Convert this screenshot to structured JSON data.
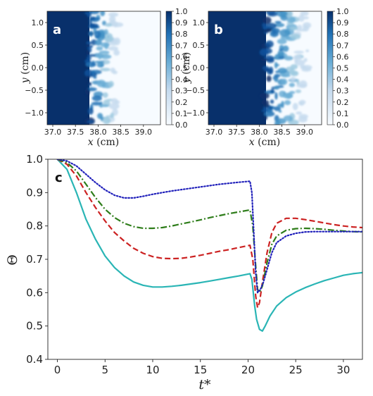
{
  "panels": [
    {
      "letter": "a",
      "xlabel_var": "x",
      "xlabel_unit": " (cm)",
      "ylabel_var": "y",
      "ylabel_unit": " (cm)",
      "xticks": [
        "37.0",
        "37.5",
        "38.0",
        "38.5",
        "39.0"
      ],
      "yticks": [
        "1.0",
        "0.5",
        "0.0",
        "−0.5",
        "−1.0"
      ],
      "colorbar_ticks": [
        "1.0",
        "0.9",
        "0.8",
        "0.7",
        "0.6",
        "0.5",
        "0.4",
        "0.3",
        "0.2",
        "0.1",
        "0.0"
      ],
      "field_colors": {
        "high": "#08306b",
        "low": "#f7fbff"
      }
    },
    {
      "letter": "b",
      "xlabel_var": "x",
      "xlabel_unit": " (cm)",
      "ylabel_var": "y",
      "ylabel_unit": " (cm)",
      "xticks": [
        "37.0",
        "37.5",
        "38.0",
        "38.5",
        "39.0"
      ],
      "yticks": [
        "1.0",
        "0.5",
        "0.0",
        "−0.5",
        "−1.0"
      ],
      "colorbar_ticks": [
        "1.0",
        "0.9",
        "0.8",
        "0.7",
        "0.6",
        "0.5",
        "0.4",
        "0.3",
        "0.2",
        "0.1",
        "0.0"
      ],
      "field_colors": {
        "high": "#08306b",
        "low": "#f7fbff"
      }
    }
  ],
  "chart_data": {
    "type": "line",
    "panel_letter": "c",
    "xlabel": "t*",
    "ylabel": "Θ",
    "xlim": [
      -1,
      32
    ],
    "ylim": [
      0.4,
      1.0
    ],
    "xticks": [
      0,
      5,
      10,
      15,
      20,
      25,
      30
    ],
    "xtick_labels": [
      "0",
      "5",
      "10",
      "15",
      "20",
      "25",
      "30"
    ],
    "yticks": [
      0.4,
      0.5,
      0.6,
      0.7,
      0.8,
      0.9,
      1.0
    ],
    "ytick_labels": [
      "0.4",
      "0.5",
      "0.6",
      "0.7",
      "0.8",
      "0.9",
      "1.0"
    ],
    "grid": false,
    "series": [
      {
        "color": "#2ab5b5",
        "style": "solid",
        "points": [
          [
            0,
            1.0
          ],
          [
            1,
            0.97
          ],
          [
            2,
            0.9
          ],
          [
            3,
            0.82
          ],
          [
            4,
            0.76
          ],
          [
            5,
            0.71
          ],
          [
            6,
            0.675
          ],
          [
            7,
            0.65
          ],
          [
            8,
            0.632
          ],
          [
            9,
            0.622
          ],
          [
            10,
            0.617
          ],
          [
            11,
            0.617
          ],
          [
            12,
            0.619
          ],
          [
            13,
            0.622
          ],
          [
            14,
            0.626
          ],
          [
            15,
            0.63
          ],
          [
            16,
            0.635
          ],
          [
            17,
            0.64
          ],
          [
            18,
            0.645
          ],
          [
            19,
            0.65
          ],
          [
            20.2,
            0.657
          ],
          [
            20.4,
            0.64
          ],
          [
            20.7,
            0.56
          ],
          [
            20.9,
            0.52
          ],
          [
            21.2,
            0.49
          ],
          [
            21.5,
            0.485
          ],
          [
            21.8,
            0.5
          ],
          [
            22.3,
            0.53
          ],
          [
            23,
            0.56
          ],
          [
            24,
            0.585
          ],
          [
            25,
            0.602
          ],
          [
            26,
            0.615
          ],
          [
            27,
            0.626
          ],
          [
            28,
            0.636
          ],
          [
            29,
            0.644
          ],
          [
            30,
            0.652
          ],
          [
            31,
            0.657
          ],
          [
            32,
            0.66
          ]
        ]
      },
      {
        "color": "#cc2222",
        "style": "dashed",
        "points": [
          [
            0,
            1.0
          ],
          [
            1,
            0.985
          ],
          [
            2,
            0.95
          ],
          [
            3,
            0.9
          ],
          [
            4,
            0.855
          ],
          [
            5,
            0.815
          ],
          [
            6,
            0.78
          ],
          [
            7,
            0.755
          ],
          [
            8,
            0.733
          ],
          [
            9,
            0.718
          ],
          [
            10,
            0.708
          ],
          [
            11,
            0.703
          ],
          [
            12,
            0.702
          ],
          [
            13,
            0.703
          ],
          [
            14,
            0.707
          ],
          [
            15,
            0.712
          ],
          [
            16,
            0.718
          ],
          [
            17,
            0.724
          ],
          [
            18,
            0.729
          ],
          [
            19,
            0.735
          ],
          [
            20.2,
            0.742
          ],
          [
            20.5,
            0.7
          ],
          [
            20.8,
            0.59
          ],
          [
            21,
            0.555
          ],
          [
            21.2,
            0.57
          ],
          [
            21.5,
            0.63
          ],
          [
            22,
            0.72
          ],
          [
            22.5,
            0.78
          ],
          [
            23,
            0.808
          ],
          [
            24,
            0.823
          ],
          [
            25,
            0.823
          ],
          [
            26,
            0.819
          ],
          [
            27,
            0.814
          ],
          [
            28,
            0.809
          ],
          [
            29,
            0.804
          ],
          [
            30,
            0.8
          ],
          [
            31,
            0.797
          ],
          [
            32,
            0.795
          ]
        ]
      },
      {
        "color": "#2e7d1a",
        "style": "dashdot",
        "points": [
          [
            0,
            1.0
          ],
          [
            1,
            0.99
          ],
          [
            2,
            0.965
          ],
          [
            3,
            0.925
          ],
          [
            4,
            0.885
          ],
          [
            5,
            0.85
          ],
          [
            6,
            0.825
          ],
          [
            7,
            0.808
          ],
          [
            8,
            0.798
          ],
          [
            9,
            0.793
          ],
          [
            10,
            0.793
          ],
          [
            11,
            0.795
          ],
          [
            12,
            0.8
          ],
          [
            13,
            0.806
          ],
          [
            14,
            0.812
          ],
          [
            15,
            0.818
          ],
          [
            16,
            0.825
          ],
          [
            17,
            0.831
          ],
          [
            18,
            0.837
          ],
          [
            19,
            0.842
          ],
          [
            20.2,
            0.848
          ],
          [
            20.5,
            0.8
          ],
          [
            20.8,
            0.68
          ],
          [
            21,
            0.61
          ],
          [
            21.2,
            0.6
          ],
          [
            21.5,
            0.62
          ],
          [
            22,
            0.69
          ],
          [
            22.5,
            0.745
          ],
          [
            23,
            0.77
          ],
          [
            24,
            0.787
          ],
          [
            25,
            0.792
          ],
          [
            26,
            0.793
          ],
          [
            27,
            0.792
          ],
          [
            28,
            0.79
          ],
          [
            29,
            0.787
          ],
          [
            30,
            0.785
          ],
          [
            31,
            0.783
          ],
          [
            32,
            0.782
          ]
        ]
      },
      {
        "color": "#2222bb",
        "style": "dotted",
        "points": [
          [
            0,
            1.0
          ],
          [
            1,
            0.995
          ],
          [
            2,
            0.98
          ],
          [
            3,
            0.955
          ],
          [
            4,
            0.93
          ],
          [
            5,
            0.908
          ],
          [
            6,
            0.892
          ],
          [
            7,
            0.884
          ],
          [
            8,
            0.884
          ],
          [
            9,
            0.889
          ],
          [
            10,
            0.895
          ],
          [
            11,
            0.9
          ],
          [
            12,
            0.905
          ],
          [
            13,
            0.909
          ],
          [
            14,
            0.913
          ],
          [
            15,
            0.917
          ],
          [
            16,
            0.921
          ],
          [
            17,
            0.925
          ],
          [
            18,
            0.928
          ],
          [
            19,
            0.931
          ],
          [
            20.2,
            0.934
          ],
          [
            20.4,
            0.9
          ],
          [
            20.6,
            0.78
          ],
          [
            20.8,
            0.66
          ],
          [
            21,
            0.6
          ],
          [
            21.3,
            0.61
          ],
          [
            21.6,
            0.63
          ],
          [
            22,
            0.67
          ],
          [
            22.5,
            0.72
          ],
          [
            23,
            0.75
          ],
          [
            24,
            0.77
          ],
          [
            25,
            0.778
          ],
          [
            26,
            0.782
          ],
          [
            27,
            0.783
          ],
          [
            28,
            0.783
          ],
          [
            29,
            0.783
          ],
          [
            30,
            0.783
          ],
          [
            31,
            0.783
          ],
          [
            32,
            0.783
          ]
        ]
      }
    ]
  }
}
